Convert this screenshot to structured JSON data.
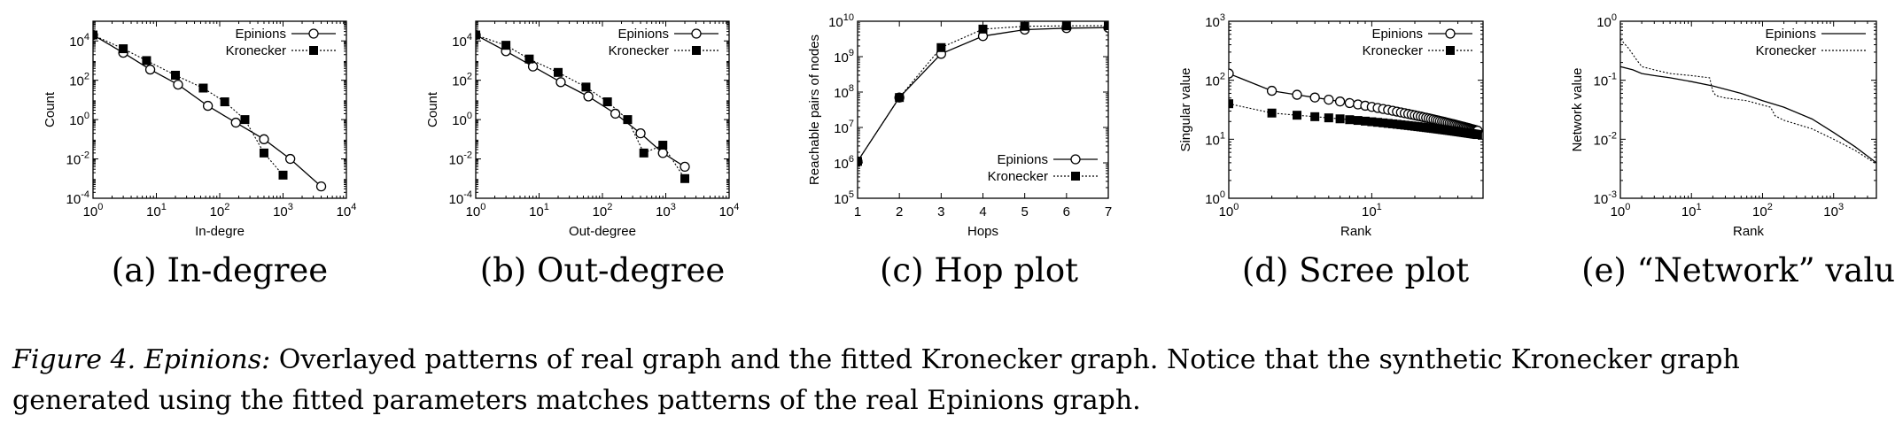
{
  "chart_data": [
    {
      "id": "a",
      "type": "line",
      "subtitle": "(a) In-degree",
      "xlabel": "In-degre",
      "ylabel": "Count",
      "xscale": "log",
      "yscale": "log",
      "xlim": [
        1,
        10000
      ],
      "ylim": [
        0.0001,
        100000
      ],
      "xticks": [
        1,
        10,
        100,
        1000,
        10000
      ],
      "yticks": [
        0.0001,
        0.01,
        1,
        100,
        10000
      ],
      "legend_position": "top-right",
      "series": [
        {
          "name": "Epinions",
          "marker": "circle",
          "line": "solid",
          "x": [
            1,
            3,
            8,
            22,
            65,
            180,
            500,
            1300,
            4000
          ],
          "y": [
            20000,
            2500,
            350,
            60,
            5,
            0.7,
            0.1,
            0.01,
            0.0004
          ]
        },
        {
          "name": "Kronecker",
          "marker": "square",
          "line": "dotted",
          "x": [
            1,
            3,
            7,
            20,
            55,
            120,
            250,
            500,
            1000
          ],
          "y": [
            20000,
            4000,
            1000,
            180,
            40,
            8,
            1,
            0.02,
            0.0015
          ]
        }
      ]
    },
    {
      "id": "b",
      "type": "line",
      "subtitle": "(b) Out-degree",
      "xlabel": "Out-degree",
      "ylabel": "Count",
      "xscale": "log",
      "yscale": "log",
      "xlim": [
        1,
        10000
      ],
      "ylim": [
        0.0001,
        100000
      ],
      "xticks": [
        1,
        10,
        100,
        1000,
        10000
      ],
      "yticks": [
        0.0001,
        0.01,
        1,
        100,
        10000
      ],
      "legend_position": "top-right",
      "series": [
        {
          "name": "Epinions",
          "marker": "circle",
          "line": "solid",
          "x": [
            1,
            3,
            8,
            22,
            60,
            160,
            400,
            900,
            2000
          ],
          "y": [
            20000,
            3000,
            500,
            80,
            15,
            2,
            0.2,
            0.02,
            0.004
          ]
        },
        {
          "name": "Kronecker",
          "marker": "square",
          "line": "dotted",
          "x": [
            1,
            3,
            7,
            20,
            55,
            120,
            250,
            450,
            900,
            2000
          ],
          "y": [
            20000,
            6000,
            1200,
            250,
            45,
            8,
            1,
            0.02,
            0.05,
            0.001
          ]
        }
      ]
    },
    {
      "id": "c",
      "type": "line",
      "subtitle": "(c) Hop plot",
      "xlabel": "Hops",
      "ylabel": "Reachable pairs of nodes",
      "xscale": "linear",
      "yscale": "log",
      "xlim": [
        1,
        7
      ],
      "ylim": [
        100000,
        10000000000
      ],
      "xticks": [
        1,
        2,
        3,
        4,
        5,
        6,
        7
      ],
      "yticks": [
        100000,
        1000000,
        10000000,
        100000000,
        1000000000,
        10000000000
      ],
      "legend_position": "bottom-right",
      "series": [
        {
          "name": "Epinions",
          "marker": "circle",
          "line": "solid",
          "x": [
            1,
            2,
            3,
            4,
            5,
            6,
            7
          ],
          "y": [
            1100000,
            70000000,
            1200000000,
            3800000000,
            5800000000,
            6400000000,
            6600000000
          ]
        },
        {
          "name": "Kronecker",
          "marker": "square",
          "line": "dotted",
          "x": [
            1,
            2,
            3,
            4,
            5,
            6,
            7
          ],
          "y": [
            1100000,
            70000000,
            1800000000,
            6000000000,
            7200000000,
            7400000000,
            7500000000
          ]
        }
      ]
    },
    {
      "id": "d",
      "type": "line",
      "subtitle": "(d) Scree plot",
      "xlabel": "Rank",
      "ylabel": "Singular value",
      "xscale": "log",
      "yscale": "log",
      "xlim": [
        1,
        60
      ],
      "ylim": [
        1,
        1000
      ],
      "xticks": [
        1,
        10
      ],
      "yticks": [
        1,
        10,
        100,
        1000
      ],
      "legend_position": "top-right",
      "series": [
        {
          "name": "Epinions",
          "marker": "circle",
          "line": "solid",
          "rank_range": [
            1,
            55
          ],
          "y_first": 130,
          "y_last": 14,
          "curve_exponent": 0.3
        },
        {
          "name": "Kronecker",
          "marker": "square",
          "line": "dotted",
          "rank_range": [
            1,
            55
          ],
          "y_first": 40,
          "y_last": 12,
          "curve_exponent": 0.3
        }
      ]
    },
    {
      "id": "e",
      "type": "line",
      "subtitle": "(e) “Network” value",
      "xlabel": "Rank",
      "ylabel": "Network value",
      "xscale": "log",
      "yscale": "log",
      "xlim": [
        1,
        4000
      ],
      "ylim": [
        0.001,
        1
      ],
      "xticks": [
        1,
        10,
        100,
        1000
      ],
      "yticks": [
        0.001,
        0.01,
        0.1,
        1
      ],
      "legend_position": "top-right",
      "series": [
        {
          "name": "Epinions",
          "marker": "none",
          "line": "solid",
          "x": [
            1,
            1.5,
            2,
            3,
            5,
            10,
            20,
            50,
            100,
            200,
            500,
            1000,
            2000,
            4000
          ],
          "y": [
            0.17,
            0.15,
            0.13,
            0.12,
            0.11,
            0.095,
            0.08,
            0.06,
            0.045,
            0.035,
            0.022,
            0.013,
            0.0075,
            0.004
          ]
        },
        {
          "name": "Kronecker",
          "marker": "none",
          "line": "dotted",
          "x": [
            1,
            1.3,
            1.7,
            2,
            3,
            5,
            10,
            18,
            20,
            22,
            30,
            60,
            100,
            130,
            150,
            200,
            500,
            1000,
            2000,
            4000
          ],
          "y": [
            0.5,
            0.35,
            0.22,
            0.17,
            0.15,
            0.13,
            0.12,
            0.11,
            0.065,
            0.055,
            0.05,
            0.045,
            0.038,
            0.035,
            0.025,
            0.021,
            0.015,
            0.01,
            0.0065,
            0.0038
          ]
        }
      ]
    }
  ],
  "caption": {
    "label": "Figure 4.",
    "dataset": "Epinions:",
    "text": "Overlayed patterns of real graph and the fitted Kronecker graph. Notice that the synthetic Kronecker graph generated using the fitted parameters matches patterns of the real Epinions graph."
  }
}
